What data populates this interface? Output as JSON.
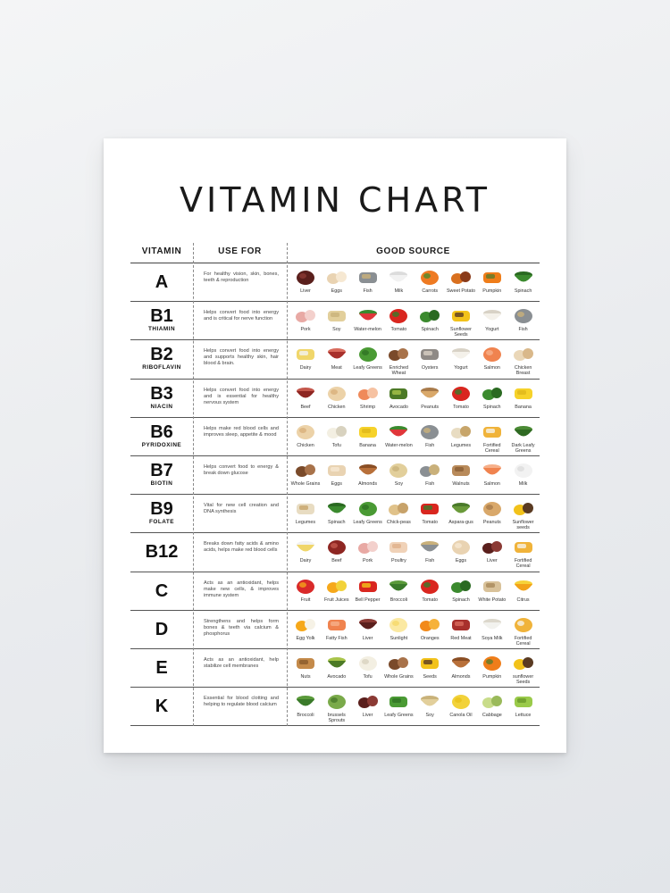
{
  "poster": {
    "title": "VITAMIN CHART",
    "headers": {
      "vitamin": "VITAMIN",
      "use_for": "USE FOR",
      "good_source": "GOOD SOURCE"
    }
  },
  "rows": [
    {
      "letter": "A",
      "name": "",
      "use": "For healthy vision, skin, bones, teeth & reproduction",
      "foods": [
        {
          "label": "Liver",
          "icon": "liver-icon",
          "colors": [
            "#5a1f1c",
            "#8b3a34"
          ]
        },
        {
          "label": "Eggs",
          "icon": "eggs-icon",
          "colors": [
            "#e9d3b2",
            "#f6e8d2"
          ]
        },
        {
          "label": "Fish",
          "icon": "fish-icon",
          "colors": [
            "#8a8f93",
            "#c9b07a"
          ]
        },
        {
          "label": "Milk",
          "icon": "milk-icon",
          "colors": [
            "#f2f2f2",
            "#dcdcdc"
          ]
        },
        {
          "label": "Carrots",
          "icon": "carrots-icon",
          "colors": [
            "#ee7a22",
            "#4e8a2c"
          ]
        },
        {
          "label": "Sweet Potato",
          "icon": "sweet-potato-icon",
          "colors": [
            "#d9701f",
            "#8a3b1a"
          ]
        },
        {
          "label": "Pumpkin",
          "icon": "pumpkin-icon",
          "colors": [
            "#ef7d1a",
            "#5c7a2a"
          ]
        },
        {
          "label": "Spinach",
          "icon": "spinach-icon",
          "colors": [
            "#3b8a2e",
            "#2a6a21"
          ]
        }
      ]
    },
    {
      "letter": "B1",
      "name": "THIAMIN",
      "use": "Helps convert food into energy and is critical for nerve function",
      "foods": [
        {
          "label": "Pork",
          "icon": "pork-icon",
          "colors": [
            "#e8a9a4",
            "#f3d0cc"
          ]
        },
        {
          "label": "Soy",
          "icon": "soy-icon",
          "colors": [
            "#e2cf9b",
            "#c9b27a"
          ]
        },
        {
          "label": "Water-melon",
          "icon": "watermelon-icon",
          "colors": [
            "#e0363a",
            "#3b8a2e"
          ]
        },
        {
          "label": "Tomato",
          "icon": "tomato-icon",
          "colors": [
            "#d9261f",
            "#3b7a2a"
          ]
        },
        {
          "label": "Spinach",
          "icon": "spinach-icon",
          "colors": [
            "#3b8a2e",
            "#2a6a21"
          ]
        },
        {
          "label": "Sunflower Seeds",
          "icon": "sunflower-seeds-icon",
          "colors": [
            "#f2c21a",
            "#5a3b22"
          ]
        },
        {
          "label": "Yogurt",
          "icon": "yogurt-icon",
          "colors": [
            "#f4f1ea",
            "#d8d2c6"
          ]
        },
        {
          "label": "Fish",
          "icon": "fish-icon",
          "colors": [
            "#8a8f93",
            "#c9b07a"
          ]
        }
      ]
    },
    {
      "letter": "B2",
      "name": "RIBOFLAVIN",
      "use": "Helps convert food into energy and supports healthy skin, hair blood & brain.",
      "foods": [
        {
          "label": "Dairy",
          "icon": "dairy-icon",
          "colors": [
            "#f0d66a",
            "#f2f2f2"
          ]
        },
        {
          "label": "Meat",
          "icon": "meat-icon",
          "colors": [
            "#a8302c",
            "#d86a5c"
          ]
        },
        {
          "label": "Leafy Greens",
          "icon": "leafy-greens-icon",
          "colors": [
            "#4a9a34",
            "#2f7324"
          ]
        },
        {
          "label": "Enriched Wheat",
          "icon": "enriched-wheat-icon",
          "colors": [
            "#7a4a2a",
            "#a8724a"
          ]
        },
        {
          "label": "Oysters",
          "icon": "oysters-icon",
          "colors": [
            "#8f8a86",
            "#d8d0c4"
          ]
        },
        {
          "label": "Yogurt",
          "icon": "yogurt-icon",
          "colors": [
            "#f4f1ea",
            "#d8d2c6"
          ]
        },
        {
          "label": "Salmon",
          "icon": "salmon-icon",
          "colors": [
            "#f0834f",
            "#f6b08a"
          ]
        },
        {
          "label": "Chicken Breast",
          "icon": "chicken-breast-icon",
          "colors": [
            "#ead7b8",
            "#d9b88a"
          ]
        }
      ]
    },
    {
      "letter": "B3",
      "name": "NIACIN",
      "use": "Helps convert food into energy and is essential for healthy nervous system",
      "foods": [
        {
          "label": "Beef",
          "icon": "beef-icon",
          "colors": [
            "#8e2622",
            "#c4574c"
          ]
        },
        {
          "label": "Chicken",
          "icon": "chicken-icon",
          "colors": [
            "#ecd2a8",
            "#d9b07a"
          ]
        },
        {
          "label": "Shrimp",
          "icon": "shrimp-icon",
          "colors": [
            "#ef8a5a",
            "#f6c2a2"
          ]
        },
        {
          "label": "Avocado",
          "icon": "avocado-icon",
          "colors": [
            "#4c7a26",
            "#a8c44a"
          ]
        },
        {
          "label": "Peanuts",
          "icon": "peanuts-icon",
          "colors": [
            "#d9a86a",
            "#a87a4a"
          ]
        },
        {
          "label": "Tomato",
          "icon": "tomato-icon",
          "colors": [
            "#d9261f",
            "#3b7a2a"
          ]
        },
        {
          "label": "Spinach",
          "icon": "spinach-icon",
          "colors": [
            "#3b8a2e",
            "#2a6a21"
          ]
        },
        {
          "label": "Banana",
          "icon": "banana-icon",
          "colors": [
            "#f6d22a",
            "#e0b81a"
          ]
        }
      ]
    },
    {
      "letter": "B6",
      "name": "PYRIDOXINE",
      "use": "Helps make red blood cells and improves sleep, appetite & mood",
      "foods": [
        {
          "label": "Chicken",
          "icon": "chicken-icon",
          "colors": [
            "#ecd2a8",
            "#d9b07a"
          ]
        },
        {
          "label": "Tofu",
          "icon": "tofu-icon",
          "colors": [
            "#f3efe2",
            "#d8d2bf"
          ]
        },
        {
          "label": "Banana",
          "icon": "banana-icon",
          "colors": [
            "#f6d22a",
            "#e0b81a"
          ]
        },
        {
          "label": "Water-melon",
          "icon": "watermelon-icon",
          "colors": [
            "#e0363a",
            "#3b8a2e"
          ]
        },
        {
          "label": "Fish",
          "icon": "fish-icon",
          "colors": [
            "#8a8f93",
            "#c9b07a"
          ]
        },
        {
          "label": "Legumes",
          "icon": "legumes-icon",
          "colors": [
            "#e8dcc2",
            "#c7a56a"
          ]
        },
        {
          "label": "Fortified Cereal",
          "icon": "fortified-cereal-icon",
          "colors": [
            "#f0b33a",
            "#f6f2ea"
          ]
        },
        {
          "label": "Dark Leafy Greens",
          "icon": "dark-leafy-greens-icon",
          "colors": [
            "#2f6a22",
            "#4a8a34"
          ]
        }
      ]
    },
    {
      "letter": "B7",
      "name": "BIOTIN",
      "use": "Helps convert food to energy & break down glucose",
      "foods": [
        {
          "label": "Whole Grains",
          "icon": "whole-grains-icon",
          "colors": [
            "#7a4a2a",
            "#a8724a"
          ]
        },
        {
          "label": "Eggs",
          "icon": "eggs-icon",
          "colors": [
            "#e9d3b2",
            "#f6e8d2"
          ]
        },
        {
          "label": "Almonds",
          "icon": "almonds-icon",
          "colors": [
            "#b8703a",
            "#8a4e24"
          ]
        },
        {
          "label": "Soy",
          "icon": "soy-icon",
          "colors": [
            "#e2cf9b",
            "#c9b27a"
          ]
        },
        {
          "label": "Fish",
          "icon": "fish-icon",
          "colors": [
            "#8a8f93",
            "#c9b07a"
          ]
        },
        {
          "label": "Walnuts",
          "icon": "walnuts-icon",
          "colors": [
            "#b88a5a",
            "#8a5e34"
          ]
        },
        {
          "label": "Salmon",
          "icon": "salmon-icon",
          "colors": [
            "#f0834f",
            "#f6b08a"
          ]
        },
        {
          "label": "Milk",
          "icon": "milk-icon",
          "colors": [
            "#f2f2f2",
            "#dcdcdc"
          ]
        }
      ]
    },
    {
      "letter": "B9",
      "name": "FOLATE",
      "use": "Vital for new cell creation and DNA synthesis",
      "foods": [
        {
          "label": "Legumes",
          "icon": "legumes-icon",
          "colors": [
            "#e8dcc2",
            "#c7a56a"
          ]
        },
        {
          "label": "Spinach",
          "icon": "spinach-icon",
          "colors": [
            "#3b8a2e",
            "#2a6a21"
          ]
        },
        {
          "label": "Leafy Greens",
          "icon": "leafy-greens-icon",
          "colors": [
            "#4a9a34",
            "#2f7324"
          ]
        },
        {
          "label": "Chick-peas",
          "icon": "chickpeas-icon",
          "colors": [
            "#e0c28a",
            "#c7a26a"
          ]
        },
        {
          "label": "Tomato",
          "icon": "tomato-icon",
          "colors": [
            "#d9261f",
            "#3b7a2a"
          ]
        },
        {
          "label": "Aspara-gus",
          "icon": "asparagus-icon",
          "colors": [
            "#6a9a3a",
            "#4a7a2a"
          ]
        },
        {
          "label": "Peanuts",
          "icon": "peanuts-icon",
          "colors": [
            "#d9a86a",
            "#a87a4a"
          ]
        },
        {
          "label": "Sunflower seeds",
          "icon": "sunflower-seeds-icon",
          "colors": [
            "#f2c21a",
            "#5a3b22"
          ]
        }
      ]
    },
    {
      "letter": "B12",
      "name": "",
      "use": "Breaks down fatty acids & amino acids, helps make red blood cells",
      "foods": [
        {
          "label": "Dairy",
          "icon": "dairy-icon",
          "colors": [
            "#f0d66a",
            "#f2f2f2"
          ]
        },
        {
          "label": "Beef",
          "icon": "beef-icon",
          "colors": [
            "#8e2622",
            "#c4574c"
          ]
        },
        {
          "label": "Pork",
          "icon": "pork-icon",
          "colors": [
            "#e8a9a4",
            "#f3d0cc"
          ]
        },
        {
          "label": "Poultry",
          "icon": "poultry-icon",
          "colors": [
            "#f0d2b8",
            "#e0b08a"
          ]
        },
        {
          "label": "Fish",
          "icon": "fish-icon",
          "colors": [
            "#8a8f93",
            "#c9b07a"
          ]
        },
        {
          "label": "Eggs",
          "icon": "eggs-icon",
          "colors": [
            "#e9d3b2",
            "#f6e8d2"
          ]
        },
        {
          "label": "Liver",
          "icon": "liver-icon",
          "colors": [
            "#5a1f1c",
            "#8b3a34"
          ]
        },
        {
          "label": "Fortified Cereal",
          "icon": "fortified-cereal-icon",
          "colors": [
            "#f0b33a",
            "#f6f2ea"
          ]
        }
      ]
    },
    {
      "letter": "C",
      "name": "",
      "use": "Acts as an antioxidant, helps make new cells, & improves immune system",
      "foods": [
        {
          "label": "Fruit",
          "icon": "fruit-icon",
          "colors": [
            "#d92a2a",
            "#f2a21a"
          ]
        },
        {
          "label": "Fruit Juices",
          "icon": "fruit-juices-icon",
          "colors": [
            "#f6a81a",
            "#f2d23a"
          ]
        },
        {
          "label": "Bell Pepper",
          "icon": "bell-pepper-icon",
          "colors": [
            "#d9261f",
            "#f2c21a"
          ]
        },
        {
          "label": "Broccoli",
          "icon": "broccoli-icon",
          "colors": [
            "#3a7a2a",
            "#5a9a3a"
          ]
        },
        {
          "label": "Tomato",
          "icon": "tomato-icon",
          "colors": [
            "#d9261f",
            "#3b7a2a"
          ]
        },
        {
          "label": "Spinach",
          "icon": "spinach-icon",
          "colors": [
            "#3b8a2e",
            "#2a6a21"
          ]
        },
        {
          "label": "White Potato",
          "icon": "white-potato-icon",
          "colors": [
            "#d9c29a",
            "#a8885a"
          ]
        },
        {
          "label": "Citrus",
          "icon": "citrus-icon",
          "colors": [
            "#f2a21a",
            "#f6d23a"
          ]
        }
      ]
    },
    {
      "letter": "D",
      "name": "",
      "use": "Strengthens and helps form bones & teeth via calcium & phosphorus",
      "foods": [
        {
          "label": "Egg Yolk",
          "icon": "egg-yolk-icon",
          "colors": [
            "#f6a81a",
            "#f6f2e6"
          ]
        },
        {
          "label": "Fatty Fish",
          "icon": "fatty-fish-icon",
          "colors": [
            "#f0834f",
            "#f6b08a"
          ]
        },
        {
          "label": "Liver",
          "icon": "liver-icon",
          "colors": [
            "#5a1f1c",
            "#8b3a34"
          ]
        },
        {
          "label": "Sunlight",
          "icon": "sunlight-icon",
          "colors": [
            "#fbe9a2",
            "#f6d86a"
          ]
        },
        {
          "label": "Oranges",
          "icon": "oranges-icon",
          "colors": [
            "#f28a1a",
            "#f6b23a"
          ]
        },
        {
          "label": "Red Meat",
          "icon": "red-meat-icon",
          "colors": [
            "#a8302c",
            "#d86a5c"
          ]
        },
        {
          "label": "Soya Milk",
          "icon": "soya-milk-icon",
          "colors": [
            "#f2f2ee",
            "#dcd8cc"
          ]
        },
        {
          "label": "Fortified Cereal",
          "icon": "fortified-cereal-icon",
          "colors": [
            "#f0b33a",
            "#f6f2ea"
          ]
        }
      ]
    },
    {
      "letter": "E",
      "name": "",
      "use": "Acts as an antioxidant, help stabilize cell membranes",
      "foods": [
        {
          "label": "Nuts",
          "icon": "nuts-icon",
          "colors": [
            "#c48a4a",
            "#8a5a2a"
          ]
        },
        {
          "label": "Avocado",
          "icon": "avocado-icon",
          "colors": [
            "#4c7a26",
            "#a8c44a"
          ]
        },
        {
          "label": "Tofu",
          "icon": "tofu-icon",
          "colors": [
            "#f3efe2",
            "#d8d2bf"
          ]
        },
        {
          "label": "Whole Grains",
          "icon": "whole-grains-icon",
          "colors": [
            "#7a4a2a",
            "#a8724a"
          ]
        },
        {
          "label": "Seeds",
          "icon": "seeds-icon",
          "colors": [
            "#f2c21a",
            "#5a3b22"
          ]
        },
        {
          "label": "Almonds",
          "icon": "almonds-icon",
          "colors": [
            "#b8703a",
            "#8a4e24"
          ]
        },
        {
          "label": "Pumpkin",
          "icon": "pumpkin-icon",
          "colors": [
            "#ef7d1a",
            "#5c7a2a"
          ]
        },
        {
          "label": "sunflower Seeds",
          "icon": "sunflower-seeds-icon",
          "colors": [
            "#f2c21a",
            "#5a3b22"
          ]
        }
      ]
    },
    {
      "letter": "K",
      "name": "",
      "use": "Essential for blood clotting and helping to regulate blood calcium",
      "foods": [
        {
          "label": "Broccoli",
          "icon": "broccoli-icon",
          "colors": [
            "#3a7a2a",
            "#5a9a3a"
          ]
        },
        {
          "label": "brussels Sprouts",
          "icon": "brussels-sprouts-icon",
          "colors": [
            "#7aaa4a",
            "#4a7a2a"
          ]
        },
        {
          "label": "Liver",
          "icon": "liver-icon",
          "colors": [
            "#5a1f1c",
            "#8b3a34"
          ]
        },
        {
          "label": "Leafy Greens",
          "icon": "leafy-greens-icon",
          "colors": [
            "#4a9a34",
            "#2f7324"
          ]
        },
        {
          "label": "Soy",
          "icon": "soy-icon",
          "colors": [
            "#e2cf9b",
            "#c9b27a"
          ]
        },
        {
          "label": "Canola Oil",
          "icon": "canola-oil-icon",
          "colors": [
            "#f2d23a",
            "#e8c21a"
          ]
        },
        {
          "label": "Cabbage",
          "icon": "cabbage-icon",
          "colors": [
            "#c8dc8a",
            "#9aba5a"
          ]
        },
        {
          "label": "Lettuce",
          "icon": "lettuce-icon",
          "colors": [
            "#9aca4a",
            "#6a9a2a"
          ]
        }
      ]
    }
  ]
}
